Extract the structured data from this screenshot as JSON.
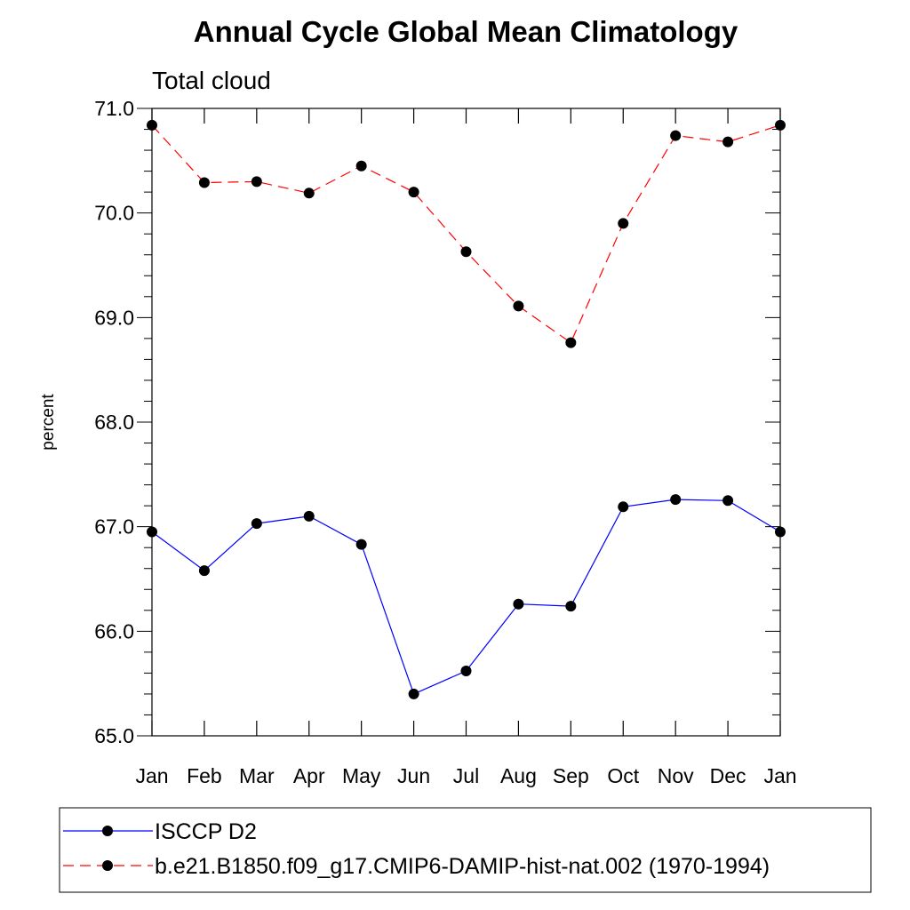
{
  "chart_data": {
    "type": "line",
    "title": "Annual Cycle Global Mean Climatology",
    "subtitle": "Total cloud",
    "xlabel": "",
    "ylabel": "percent",
    "categories": [
      "Jan",
      "Feb",
      "Mar",
      "Apr",
      "May",
      "Jun",
      "Jul",
      "Aug",
      "Sep",
      "Oct",
      "Nov",
      "Dec",
      "Jan"
    ],
    "ylim": [
      65.0,
      71.0
    ],
    "y_ticks": [
      "65.0",
      "66.0",
      "67.0",
      "68.0",
      "69.0",
      "70.0",
      "71.0"
    ],
    "grid": false,
    "legend_position": "bottom",
    "series": [
      {
        "name": "ISCCP D2",
        "color": "#0000ff",
        "line_style": "solid",
        "marker": "filled-circle",
        "values": [
          66.95,
          66.58,
          67.03,
          67.1,
          66.83,
          65.4,
          65.62,
          66.26,
          66.24,
          67.19,
          67.26,
          67.25,
          66.95
        ]
      },
      {
        "name": "b.e21.B1850.f09_g17.CMIP6-DAMIP-hist-nat.002 (1970-1994)",
        "color": "#ff0000",
        "line_style": "dashed",
        "marker": "filled-circle",
        "values": [
          70.84,
          70.29,
          70.3,
          70.19,
          70.45,
          70.2,
          69.63,
          69.11,
          68.76,
          69.9,
          70.74,
          70.68,
          70.84
        ]
      }
    ]
  }
}
